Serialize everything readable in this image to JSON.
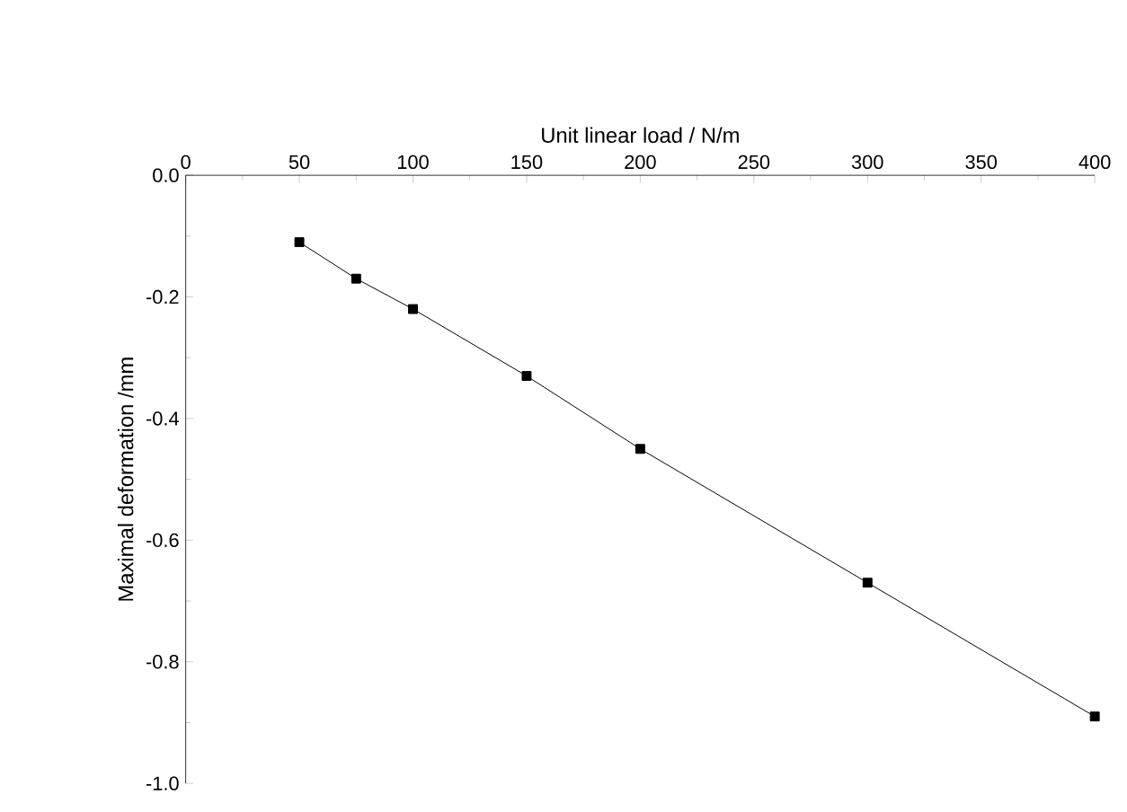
{
  "chart_data": {
    "type": "line",
    "xlabel": "Unit linear load / N/m",
    "ylabel": "Maximal deformation /mm",
    "x": [
      50,
      75,
      100,
      150,
      200,
      300,
      400
    ],
    "series": [
      {
        "color": "#000000",
        "values": [
          -0.11,
          -0.17,
          -0.22,
          -0.33,
          -0.45,
          -0.67,
          -0.89
        ]
      }
    ],
    "xlim": [
      0,
      400
    ],
    "xticks": [
      0,
      50,
      100,
      150,
      200,
      250,
      300,
      350,
      400
    ],
    "ylim": [
      -1.0,
      0.0
    ],
    "yticks": [
      {
        "value": 0,
        "label": "0.0"
      },
      -0.2,
      -0.4,
      -0.6,
      -0.8,
      {
        "value": -1,
        "label": "-1.0"
      }
    ],
    "marker": "square",
    "line_style": "solid",
    "grid": false
  }
}
